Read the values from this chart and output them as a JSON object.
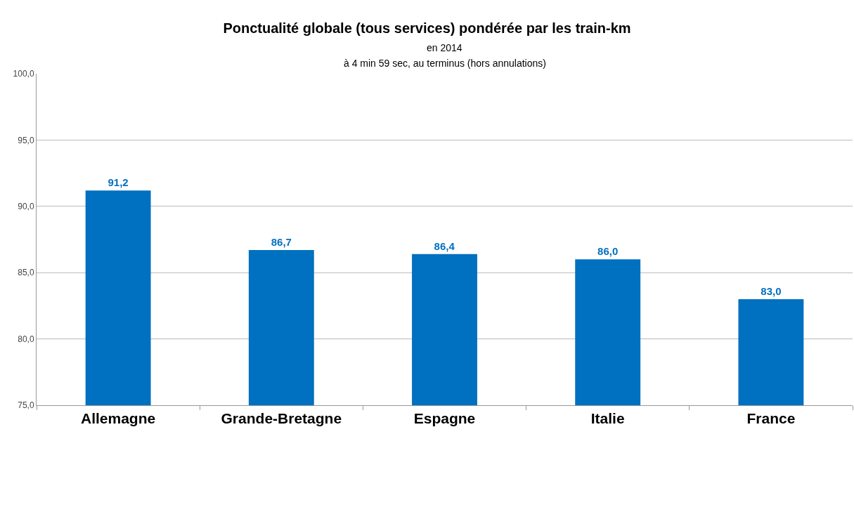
{
  "chart_data": {
    "type": "bar",
    "title": "Ponctualité globale (tous services) pondérée par les train-km",
    "subtitle": "en 2014",
    "annotations": [
      "à 4 min 59 sec, au terminus (hors annulations)"
    ],
    "categories": [
      "Allemagne",
      "Grande-Bretagne",
      "Espagne",
      "Italie",
      "France"
    ],
    "values": [
      91.2,
      86.7,
      86.4,
      86.0,
      83.0
    ],
    "color": "#0070c0",
    "value_labels": [
      "91,2",
      "86,7",
      "86,4",
      "86,0",
      "83,0"
    ],
    "ylim": [
      75,
      100
    ],
    "yticks": [
      {
        "value": 75,
        "label": "75,0"
      },
      {
        "value": 80,
        "label": "80,0"
      },
      {
        "value": 85,
        "label": "85,0"
      },
      {
        "value": 90,
        "label": "90,0"
      },
      {
        "value": 95,
        "label": "95,0"
      },
      {
        "value": 100,
        "label": "100,0"
      }
    ],
    "grid": "y",
    "legend": false
  }
}
